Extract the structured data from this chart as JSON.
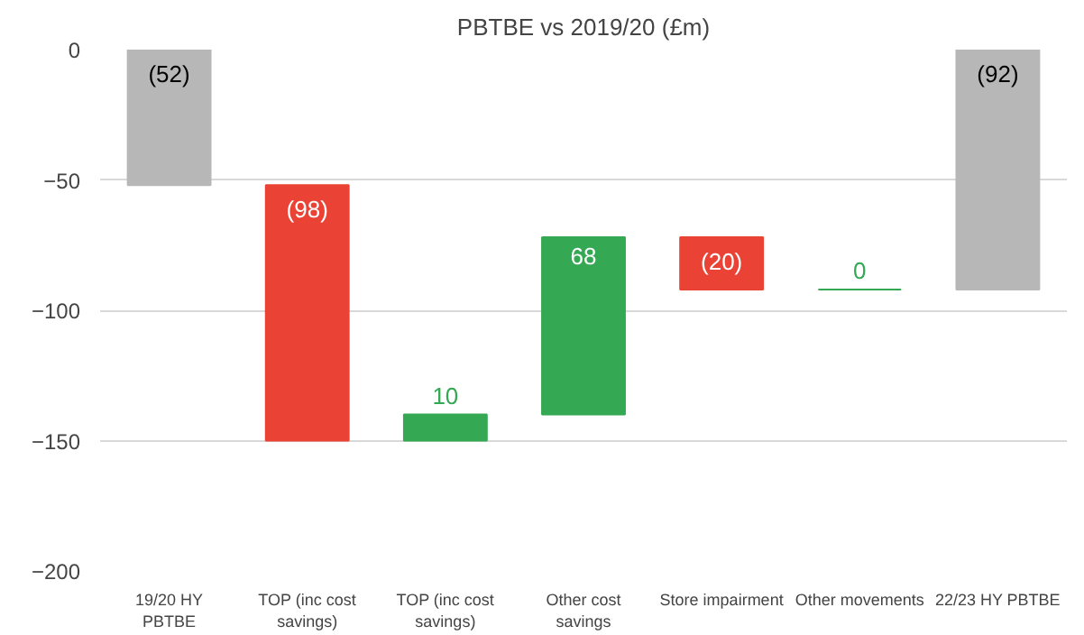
{
  "chart_data": {
    "type": "bar",
    "title": "PBTBE vs 2019/20 (£m)",
    "categories": [
      "19/20 HY\nPBTBE",
      "TOP (inc cost\nsavings)",
      "TOP (inc cost\nsavings)",
      "Other cost\nsavings",
      "Store impairment",
      "Other movements",
      "22/23 HY PBTBE"
    ],
    "values": [
      -52,
      -98,
      10,
      68,
      -20,
      0,
      -92
    ],
    "base": [
      0,
      -52,
      -150,
      -140,
      -72,
      -92,
      0
    ],
    "colors": [
      "#b7b7b7",
      "#ea4335",
      "#34a853",
      "#34a853",
      "#ea4335",
      "#34a853",
      "#b7b7b7"
    ],
    "value_labels": [
      "(52)",
      "(98)",
      "10",
      "68",
      "(20)",
      "0",
      "(92)"
    ],
    "ylim": [
      -200,
      0
    ],
    "yticks": [
      -200,
      -150,
      -100,
      -50,
      0
    ],
    "grid": "y"
  }
}
